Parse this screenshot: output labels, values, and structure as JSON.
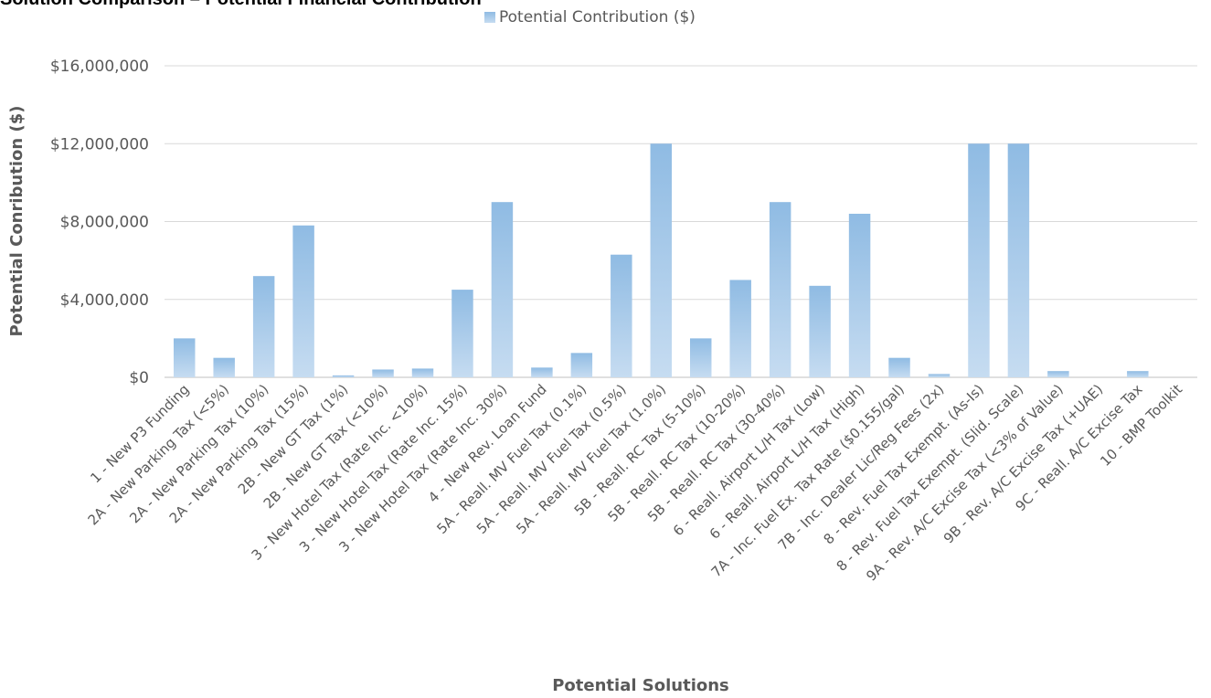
{
  "chart_data": {
    "type": "bar",
    "title": "Solution Comparison – Potential Financial Contribution",
    "xlabel": "Potential Solutions",
    "ylabel": "Potential Conribution ($)",
    "ylim": [
      0,
      16000000
    ],
    "yticks": [
      "$0",
      "$4,000,000",
      "$8,000,000",
      "$12,000,000",
      "$16,000,000"
    ],
    "grid": true,
    "legend_position": "top",
    "bar_color": "#9dc3e6",
    "categories": [
      "1 - New P3 Funding",
      "2A - New Parking Tax (<5%)",
      "2A - New Parking Tax (10%)",
      "2A - New Parking Tax (15%)",
      "2B - New GT Tax (1%)",
      "2B - New GT Tax (<10%)",
      "3 - New Hotel Tax (Rate Inc. <10%)",
      "3 - New Hotel Tax (Rate Inc. 15%)",
      "3 - New Hotel Tax (Rate Inc. 30%)",
      "4 - New Rev. Loan Fund",
      "5A - Reall. MV Fuel Tax (0.1%)",
      "5A - Reall. MV Fuel Tax (0.5%)",
      "5A - Reall. MV Fuel Tax (1.0%)",
      "5B - Reall. RC Tax (5-10%)",
      "5B - Reall. RC Tax (10-20%)",
      "5B - Reall. RC Tax (30-40%)",
      "6 - Reall. Airport L/H Tax (Low)",
      "6 - Reall. Airport L/H Tax (High)",
      "7A - Inc. Fuel Ex. Tax Rate ($0.155/gal)",
      "7B - Inc. Dealer Lic/Reg Fees (2x)",
      "8 - Rev. Fuel Tax Exempt. (As-Is)",
      "8 - Rev. Fuel Tax Exempt. (Slid. Scale)",
      "9A - Rev. A/C Excise Tax (<3% of Value)",
      "9B - Rev. A/C Excise Tax (+UAE)",
      "9C - Reall. A/C Excise Tax",
      "10 - BMP Toolkit"
    ],
    "series": [
      {
        "name": "Potential Contribution ($)",
        "values": [
          2000000,
          1000000,
          5200000,
          7800000,
          100000,
          400000,
          450000,
          4500000,
          9000000,
          500000,
          1250000,
          6300000,
          12000000,
          2000000,
          5000000,
          9000000,
          4700000,
          8400000,
          1000000,
          170000,
          12000000,
          12000000,
          320000,
          0,
          320000,
          0
        ]
      }
    ]
  }
}
